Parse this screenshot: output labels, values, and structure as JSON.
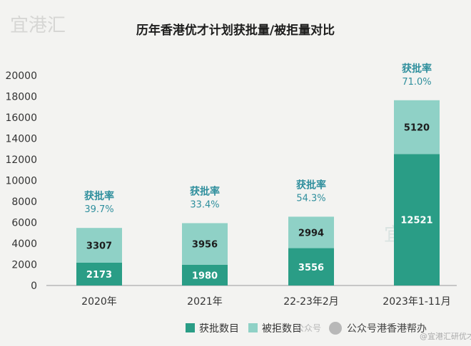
{
  "watermark": {
    "logo": "宜港汇",
    "footer": "@宜港汇研优才"
  },
  "footer_wechat": "公众号港香港帮办",
  "footer_ghost": "公众号",
  "chart_data": {
    "type": "bar",
    "stacked": true,
    "title": "历年香港优才计划获批量/被拒量对比",
    "categories": [
      "2020年",
      "2021年",
      "22-23年2月",
      "2023年1-11月"
    ],
    "series": [
      {
        "name": "获批数目",
        "values": [
          2173,
          1980,
          3556,
          12521
        ],
        "color": "#2a9d86"
      },
      {
        "name": "被拒数目",
        "values": [
          3307,
          3956,
          2994,
          5120
        ],
        "color": "#8fd1c6"
      }
    ],
    "rate_label": "获批率",
    "rates": [
      "39.7%",
      "33.4%",
      "54.3%",
      "71.0%"
    ],
    "yticks": [
      "0",
      "2000",
      "4000",
      "6000",
      "8000",
      "10000",
      "12000",
      "14000",
      "16000",
      "18000",
      "20000"
    ],
    "ylim": [
      0,
      20000
    ],
    "legend_position": "bottom"
  }
}
